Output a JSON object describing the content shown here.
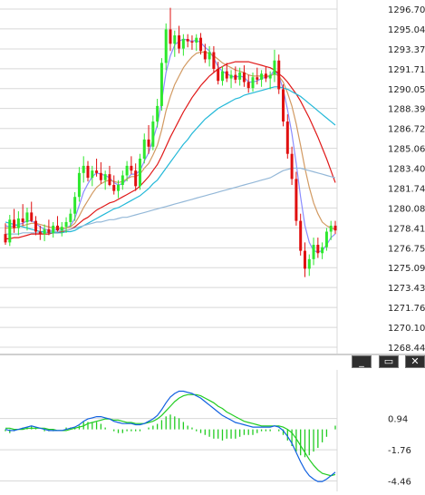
{
  "colors": {
    "grid": "#d8d8d8",
    "up": "#2ee82e",
    "down": "#e01010",
    "ma_fast": "#8a8cff",
    "ma_tan": "#d29a62",
    "ma_red": "#e01818",
    "ma_cyan": "#22b8d8",
    "ma_slow": "#94b8d8",
    "macd": "#1060e0",
    "signal": "#22cc22",
    "hist": "#22cc22",
    "divider": "#cfcfcf"
  },
  "window_controls": {
    "minimize_icon": "minimize-icon",
    "restore_icon": "restore-icon",
    "close_icon": "close-icon",
    "minimize_label": "_",
    "restore_label": "▭",
    "close_label": "✕"
  },
  "chart_data": [
    {
      "type": "candlestick",
      "y_ticks": [
        "1296.70",
        "1295.04",
        "1293.37",
        "1291.71",
        "1290.05",
        "1288.39",
        "1286.72",
        "1285.06",
        "1283.40",
        "1281.74",
        "1280.08",
        "1278.41",
        "1276.75",
        "1275.09",
        "1273.43",
        "1271.76",
        "1270.10",
        "1268.44"
      ],
      "ylim": [
        1268.44,
        1296.7
      ],
      "grid": true,
      "candles": [
        [
          1277.9,
          1278.8,
          1277.0,
          1277.2
        ],
        [
          1277.2,
          1279.5,
          1276.9,
          1279.1
        ],
        [
          1279.1,
          1280.0,
          1278.0,
          1278.4
        ],
        [
          1278.4,
          1279.8,
          1277.8,
          1279.2
        ],
        [
          1279.2,
          1280.4,
          1278.6,
          1278.9
        ],
        [
          1278.9,
          1280.1,
          1278.2,
          1279.7
        ],
        [
          1279.7,
          1280.6,
          1278.9,
          1279.0
        ],
        [
          1279.0,
          1279.4,
          1277.8,
          1278.1
        ],
        [
          1278.1,
          1278.6,
          1277.4,
          1277.9
        ],
        [
          1277.9,
          1278.7,
          1277.3,
          1278.3
        ],
        [
          1278.3,
          1279.1,
          1277.8,
          1278.0
        ],
        [
          1278.0,
          1278.9,
          1277.6,
          1278.6
        ],
        [
          1278.6,
          1279.4,
          1278.1,
          1278.2
        ],
        [
          1278.2,
          1278.9,
          1277.7,
          1278.5
        ],
        [
          1278.5,
          1279.3,
          1278.0,
          1278.9
        ],
        [
          1278.9,
          1280.0,
          1278.5,
          1279.6
        ],
        [
          1279.6,
          1281.4,
          1279.0,
          1281.0
        ],
        [
          1281.0,
          1283.5,
          1280.6,
          1283.0
        ],
        [
          1283.0,
          1284.4,
          1282.2,
          1283.6
        ],
        [
          1283.6,
          1284.0,
          1282.3,
          1282.6
        ],
        [
          1282.6,
          1283.6,
          1281.9,
          1283.2
        ],
        [
          1283.2,
          1284.2,
          1282.7,
          1283.0
        ],
        [
          1283.0,
          1283.9,
          1282.1,
          1282.4
        ],
        [
          1282.4,
          1283.2,
          1281.6,
          1282.9
        ],
        [
          1282.9,
          1283.6,
          1281.9,
          1282.0
        ],
        [
          1282.0,
          1282.8,
          1281.2,
          1281.5
        ],
        [
          1281.5,
          1282.4,
          1280.9,
          1282.0
        ],
        [
          1282.0,
          1283.2,
          1281.6,
          1282.8
        ],
        [
          1282.8,
          1284.0,
          1282.3,
          1283.6
        ],
        [
          1283.6,
          1284.4,
          1282.9,
          1283.2
        ],
        [
          1283.2,
          1283.8,
          1281.5,
          1281.9
        ],
        [
          1281.9,
          1284.6,
          1281.6,
          1284.2
        ],
        [
          1284.2,
          1286.3,
          1283.8,
          1285.8
        ],
        [
          1285.8,
          1287.0,
          1284.6,
          1285.2
        ],
        [
          1285.2,
          1287.8,
          1284.9,
          1287.3
        ],
        [
          1287.3,
          1289.2,
          1286.8,
          1288.6
        ],
        [
          1288.6,
          1292.6,
          1288.2,
          1292.2
        ],
        [
          1292.2,
          1295.5,
          1291.6,
          1295.0
        ],
        [
          1295.0,
          1296.8,
          1293.2,
          1293.8
        ],
        [
          1293.8,
          1294.9,
          1292.7,
          1294.5
        ],
        [
          1294.5,
          1295.3,
          1293.0,
          1293.4
        ],
        [
          1293.4,
          1294.6,
          1292.8,
          1294.2
        ],
        [
          1294.2,
          1294.6,
          1293.5,
          1294.0
        ],
        [
          1294.0,
          1294.5,
          1293.3,
          1293.9
        ],
        [
          1293.9,
          1294.6,
          1293.2,
          1294.3
        ],
        [
          1294.3,
          1294.7,
          1292.9,
          1293.2
        ],
        [
          1293.2,
          1293.8,
          1292.2,
          1292.5
        ],
        [
          1292.5,
          1293.6,
          1291.9,
          1293.1
        ],
        [
          1293.1,
          1293.6,
          1291.4,
          1291.7
        ],
        [
          1291.7,
          1292.3,
          1290.4,
          1290.7
        ],
        [
          1290.7,
          1291.9,
          1290.3,
          1291.5
        ],
        [
          1291.5,
          1292.2,
          1290.6,
          1290.9
        ],
        [
          1290.9,
          1291.6,
          1290.1,
          1291.2
        ],
        [
          1291.2,
          1291.9,
          1290.5,
          1290.8
        ],
        [
          1290.8,
          1291.8,
          1290.3,
          1291.4
        ],
        [
          1291.4,
          1292.0,
          1290.2,
          1290.6
        ],
        [
          1290.6,
          1291.2,
          1289.7,
          1290.1
        ],
        [
          1290.1,
          1291.4,
          1289.8,
          1291.0
        ],
        [
          1291.0,
          1291.8,
          1290.4,
          1290.8
        ],
        [
          1290.8,
          1291.6,
          1290.2,
          1291.3
        ],
        [
          1291.3,
          1291.9,
          1290.6,
          1290.9
        ],
        [
          1290.9,
          1291.5,
          1290.0,
          1291.2
        ],
        [
          1291.2,
          1293.3,
          1290.6,
          1292.4
        ],
        [
          1292.4,
          1292.9,
          1289.6,
          1290.0
        ],
        [
          1290.0,
          1290.4,
          1286.9,
          1287.3
        ],
        [
          1287.3,
          1287.9,
          1284.2,
          1284.6
        ],
        [
          1284.6,
          1285.2,
          1282.0,
          1282.5
        ],
        [
          1282.5,
          1283.1,
          1278.6,
          1279.0
        ],
        [
          1279.0,
          1279.6,
          1276.1,
          1276.5
        ],
        [
          1276.5,
          1277.2,
          1274.3,
          1275.0
        ],
        [
          1275.0,
          1276.2,
          1274.4,
          1275.8
        ],
        [
          1275.8,
          1277.6,
          1275.3,
          1277.0
        ],
        [
          1277.0,
          1277.6,
          1275.9,
          1276.3
        ],
        [
          1276.3,
          1277.2,
          1275.8,
          1276.8
        ],
        [
          1276.8,
          1278.4,
          1276.5,
          1278.1
        ],
        [
          1278.1,
          1279.0,
          1277.4,
          1278.6
        ],
        [
          1278.6,
          1279.0,
          1277.9,
          1278.2
        ]
      ],
      "overlays": [
        {
          "color_key": "ma_fast",
          "values": [
            1278.6,
            1278.5,
            1278.6,
            1278.7,
            1278.8,
            1279.0,
            1279.0,
            1278.8,
            1278.5,
            1278.3,
            1278.2,
            1278.2,
            1278.3,
            1278.3,
            1278.4,
            1278.6,
            1279.2,
            1280.3,
            1281.4,
            1282.1,
            1282.7,
            1283.0,
            1282.9,
            1282.8,
            1282.6,
            1282.2,
            1282.0,
            1282.1,
            1282.5,
            1282.9,
            1282.9,
            1283.2,
            1284.0,
            1284.7,
            1285.8,
            1287.0,
            1289.0,
            1291.4,
            1292.8,
            1293.7,
            1294.0,
            1294.2,
            1294.1,
            1294.0,
            1294.1,
            1293.9,
            1293.5,
            1293.2,
            1292.6,
            1291.9,
            1291.5,
            1291.3,
            1291.1,
            1291.0,
            1291.1,
            1291.0,
            1290.6,
            1290.6,
            1290.7,
            1290.9,
            1291.0,
            1291.1,
            1291.6,
            1291.1,
            1290.0,
            1288.3,
            1286.3,
            1283.8,
            1281.0,
            1278.6,
            1277.2,
            1276.5,
            1276.4,
            1276.5,
            1277.0,
            1277.6,
            1277.9
          ]
        },
        {
          "color_key": "ma_tan",
          "values": [
            1278.4,
            1278.4,
            1278.4,
            1278.5,
            1278.6,
            1278.7,
            1278.8,
            1278.8,
            1278.7,
            1278.6,
            1278.5,
            1278.4,
            1278.4,
            1278.4,
            1278.4,
            1278.5,
            1278.8,
            1279.4,
            1280.1,
            1280.7,
            1281.3,
            1281.8,
            1282.1,
            1282.3,
            1282.4,
            1282.3,
            1282.2,
            1282.3,
            1282.5,
            1282.7,
            1282.7,
            1282.9,
            1283.4,
            1283.8,
            1284.5,
            1285.3,
            1286.6,
            1288.2,
            1289.4,
            1290.4,
            1291.1,
            1291.8,
            1292.3,
            1292.7,
            1293.0,
            1293.1,
            1293.1,
            1293.0,
            1292.8,
            1292.5,
            1292.2,
            1292.0,
            1291.8,
            1291.6,
            1291.5,
            1291.4,
            1291.2,
            1291.1,
            1291.1,
            1291.1,
            1291.1,
            1291.1,
            1291.3,
            1291.1,
            1290.6,
            1289.7,
            1288.6,
            1287.1,
            1285.3,
            1283.4,
            1281.8,
            1280.5,
            1279.6,
            1278.9,
            1278.6,
            1278.4,
            1278.3
          ]
        },
        {
          "color_key": "ma_red",
          "values": [
            1277.5,
            1277.5,
            1277.6,
            1277.6,
            1277.7,
            1277.8,
            1277.9,
            1277.9,
            1277.9,
            1277.9,
            1277.9,
            1278.0,
            1278.0,
            1278.1,
            1278.2,
            1278.3,
            1278.5,
            1278.8,
            1279.1,
            1279.3,
            1279.6,
            1279.9,
            1280.1,
            1280.3,
            1280.5,
            1280.6,
            1280.8,
            1281.0,
            1281.2,
            1281.4,
            1281.6,
            1281.9,
            1282.3,
            1282.7,
            1283.2,
            1283.7,
            1284.4,
            1285.2,
            1286.0,
            1286.7,
            1287.4,
            1288.1,
            1288.7,
            1289.3,
            1289.8,
            1290.3,
            1290.7,
            1291.1,
            1291.4,
            1291.7,
            1291.9,
            1292.1,
            1292.2,
            1292.3,
            1292.3,
            1292.3,
            1292.3,
            1292.2,
            1292.1,
            1292.0,
            1291.9,
            1291.8,
            1291.6,
            1291.3,
            1291.0,
            1290.6,
            1290.1,
            1289.6,
            1289.0,
            1288.3,
            1287.6,
            1286.8,
            1286.0,
            1285.1,
            1284.2,
            1283.2,
            1282.2
          ]
        },
        {
          "color_key": "ma_cyan",
          "values": [
            1278.9,
            1278.8,
            1278.7,
            1278.6,
            1278.5,
            1278.4,
            1278.3,
            1278.2,
            1278.1,
            1278.1,
            1278.0,
            1278.0,
            1278.0,
            1278.0,
            1278.1,
            1278.1,
            1278.2,
            1278.4,
            1278.6,
            1278.8,
            1279.0,
            1279.2,
            1279.4,
            1279.6,
            1279.8,
            1280.0,
            1280.1,
            1280.3,
            1280.5,
            1280.7,
            1280.9,
            1281.1,
            1281.4,
            1281.7,
            1282.1,
            1282.4,
            1282.9,
            1283.4,
            1283.9,
            1284.4,
            1284.9,
            1285.4,
            1285.8,
            1286.3,
            1286.7,
            1287.1,
            1287.5,
            1287.8,
            1288.1,
            1288.4,
            1288.6,
            1288.8,
            1289.0,
            1289.2,
            1289.3,
            1289.5,
            1289.6,
            1289.7,
            1289.8,
            1289.9,
            1290.0,
            1290.1,
            1290.2,
            1290.2,
            1290.1,
            1290.0,
            1289.8,
            1289.6,
            1289.4,
            1289.1,
            1288.8,
            1288.5,
            1288.2,
            1287.9,
            1287.6,
            1287.3,
            1287.0
          ]
        },
        {
          "color_key": "ma_slow",
          "values": [
            1277.9,
            1277.9,
            1277.9,
            1277.9,
            1278.0,
            1278.0,
            1278.0,
            1278.0,
            1278.0,
            1278.0,
            1278.1,
            1278.1,
            1278.1,
            1278.2,
            1278.2,
            1278.3,
            1278.4,
            1278.5,
            1278.6,
            1278.7,
            1278.8,
            1278.9,
            1278.9,
            1279.0,
            1279.1,
            1279.1,
            1279.2,
            1279.3,
            1279.3,
            1279.4,
            1279.5,
            1279.6,
            1279.7,
            1279.8,
            1279.9,
            1280.0,
            1280.1,
            1280.2,
            1280.3,
            1280.4,
            1280.5,
            1280.6,
            1280.7,
            1280.8,
            1280.9,
            1281.0,
            1281.1,
            1281.2,
            1281.3,
            1281.4,
            1281.5,
            1281.6,
            1281.7,
            1281.8,
            1281.9,
            1282.0,
            1282.1,
            1282.2,
            1282.3,
            1282.4,
            1282.5,
            1282.6,
            1282.8,
            1283.0,
            1283.2,
            1283.3,
            1283.4,
            1283.4,
            1283.4,
            1283.3,
            1283.2,
            1283.1,
            1283.0,
            1282.9,
            1282.8,
            1282.7,
            1282.6
          ]
        }
      ]
    },
    {
      "type": "macd",
      "y_ticks": [
        "0.94",
        "-1.76",
        "-4.46"
      ],
      "ylim": [
        -5.2,
        4.2
      ],
      "grid": true,
      "macd": [
        0.0,
        -0.1,
        -0.1,
        0.0,
        0.1,
        0.2,
        0.3,
        0.2,
        0.1,
        0.0,
        -0.1,
        -0.1,
        -0.1,
        -0.1,
        0.0,
        0.1,
        0.2,
        0.4,
        0.7,
        0.9,
        1.0,
        1.1,
        1.1,
        1.0,
        0.9,
        0.7,
        0.6,
        0.5,
        0.5,
        0.5,
        0.4,
        0.4,
        0.5,
        0.7,
        0.9,
        1.2,
        1.7,
        2.3,
        2.8,
        3.1,
        3.3,
        3.3,
        3.2,
        3.1,
        2.9,
        2.7,
        2.4,
        2.1,
        1.8,
        1.5,
        1.2,
        1.0,
        0.8,
        0.6,
        0.5,
        0.4,
        0.3,
        0.2,
        0.2,
        0.2,
        0.2,
        0.2,
        0.3,
        0.2,
        -0.1,
        -0.6,
        -1.2,
        -2.0,
        -2.8,
        -3.5,
        -4.0,
        -4.3,
        -4.5,
        -4.5,
        -4.3,
        -4.0,
        -3.7
      ],
      "signal": [
        0.1,
        0.1,
        0.0,
        0.0,
        0.0,
        0.1,
        0.1,
        0.1,
        0.1,
        0.1,
        0.0,
        0.0,
        -0.1,
        -0.1,
        -0.1,
        0.0,
        0.1,
        0.2,
        0.3,
        0.5,
        0.6,
        0.7,
        0.8,
        0.9,
        0.9,
        0.8,
        0.8,
        0.7,
        0.6,
        0.6,
        0.5,
        0.5,
        0.5,
        0.6,
        0.7,
        0.9,
        1.2,
        1.6,
        2.0,
        2.4,
        2.7,
        2.9,
        3.0,
        3.0,
        3.0,
        2.9,
        2.7,
        2.5,
        2.3,
        2.0,
        1.8,
        1.5,
        1.3,
        1.1,
        0.9,
        0.7,
        0.6,
        0.5,
        0.4,
        0.3,
        0.3,
        0.3,
        0.3,
        0.3,
        0.2,
        0.0,
        -0.3,
        -0.8,
        -1.4,
        -2.0,
        -2.6,
        -3.1,
        -3.5,
        -3.8,
        -3.9,
        -4.0,
        -3.9
      ]
    }
  ]
}
